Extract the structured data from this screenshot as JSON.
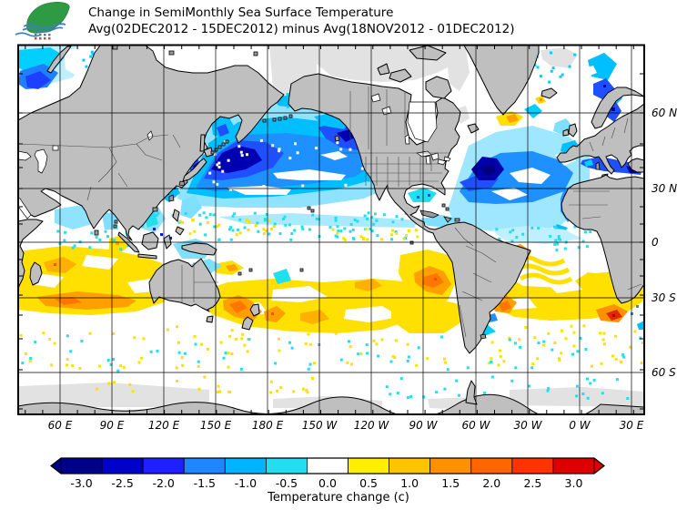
{
  "header": {
    "title": "Change in SemiMonthly Sea Surface Temperature",
    "subtitle": "Avg(02DEC2012 - 15DEC2012) minus Avg(18NOV2012 - 01DEC2012)"
  },
  "logo": {
    "name": "agency-leaf-logo"
  },
  "axes": {
    "lat_labels": [
      "60 N",
      "30 N",
      "0",
      "30 S",
      "60 S"
    ],
    "lon_labels": [
      "60 E",
      "90 E",
      "120 E",
      "150 E",
      "180 E",
      "150 W",
      "120 W",
      "90 W",
      "60 W",
      "30 W",
      "0 W",
      "30 E"
    ]
  },
  "colorbar": {
    "caption": "Temperature change (c)",
    "tick_labels": [
      "-3.0",
      "-2.5",
      "-2.0",
      "-1.5",
      "-1.0",
      "-0.5",
      "0.0",
      "0.5",
      "1.0",
      "1.5",
      "2.0",
      "2.5",
      "3.0"
    ],
    "segment_colors": [
      "#00008b",
      "#0000cd",
      "#2020ff",
      "#1e86ff",
      "#00b4ff",
      "#22dff0",
      "#ffffff",
      "#ffee00",
      "#ffc400",
      "#ff9000",
      "#ff6600",
      "#ff3300",
      "#dd0000"
    ],
    "left_arrow_color": "#00008b",
    "right_arrow_color": "#dd0000"
  },
  "chart_data": {
    "type": "map",
    "title": "Change in SemiMonthly Sea Surface Temperature",
    "variable": "Sea surface temperature change (c)",
    "period_new": "02DEC2012 - 15DEC2012",
    "period_old": "18NOV2012 - 01DEC2012",
    "scale_min": -3.0,
    "scale_max": 3.0,
    "scale_step": 0.5,
    "projection_note": "Pacific-centered Mercator world map, left edge ~37E, ~75N to ~71S",
    "qualitative_patterns": [
      "Strong cooling (blue, -0.5 to -3) over the mid-latitude North Pacific east of Japan toward the Gulf of Alaska",
      "Cooling off the US east coast, in the Mediterranean, Baltic, Norwegian and Barents Seas and along NW Africa",
      "Broad warming (yellow/orange, +0.5 to +2) across southern-hemisphere oceans between about 10S and 50S",
      "Localized strong warming south of South Africa (Agulhas), off Peru/Chile, near New Zealand and in the SW Atlantic",
      "Near-zero change (white) along the equatorial band and much of the Southern Ocean; gray = land / no data"
    ]
  }
}
